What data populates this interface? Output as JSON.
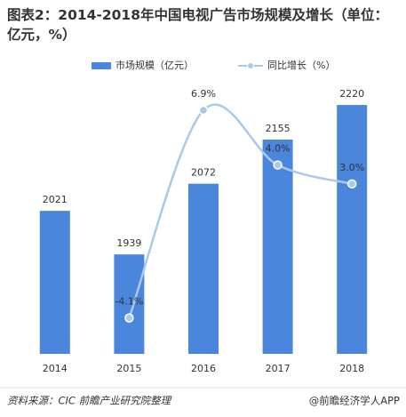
{
  "chart_data": {
    "type": "bar_line",
    "title": "图表2：2014-2018年中国电视广告市场规模及增长（单位：亿元，%）",
    "categories": [
      "2014",
      "2015",
      "2016",
      "2017",
      "2018"
    ],
    "series": [
      {
        "name": "市场规模（亿元）",
        "color": "#4a86dc",
        "type": "bar",
        "values": [
          2021,
          1939,
          2072,
          2155,
          2220
        ]
      },
      {
        "name": "同比增长（%）",
        "color": "#a9c9ec",
        "type": "line",
        "axis": "y2",
        "values": [
          null,
          -4.1,
          6.9,
          4.0,
          3.0
        ],
        "value_labels": [
          null,
          "-4.1%",
          "6.9%",
          "4.0%",
          "3.0%"
        ]
      }
    ],
    "ylim": [
      1752,
      2267
    ],
    "y2lim": [
      -6.0,
      8.5
    ],
    "source": "资料来源：CIC 前瞻产业研究院整理",
    "watermark": "@前瞻经济学人APP"
  }
}
